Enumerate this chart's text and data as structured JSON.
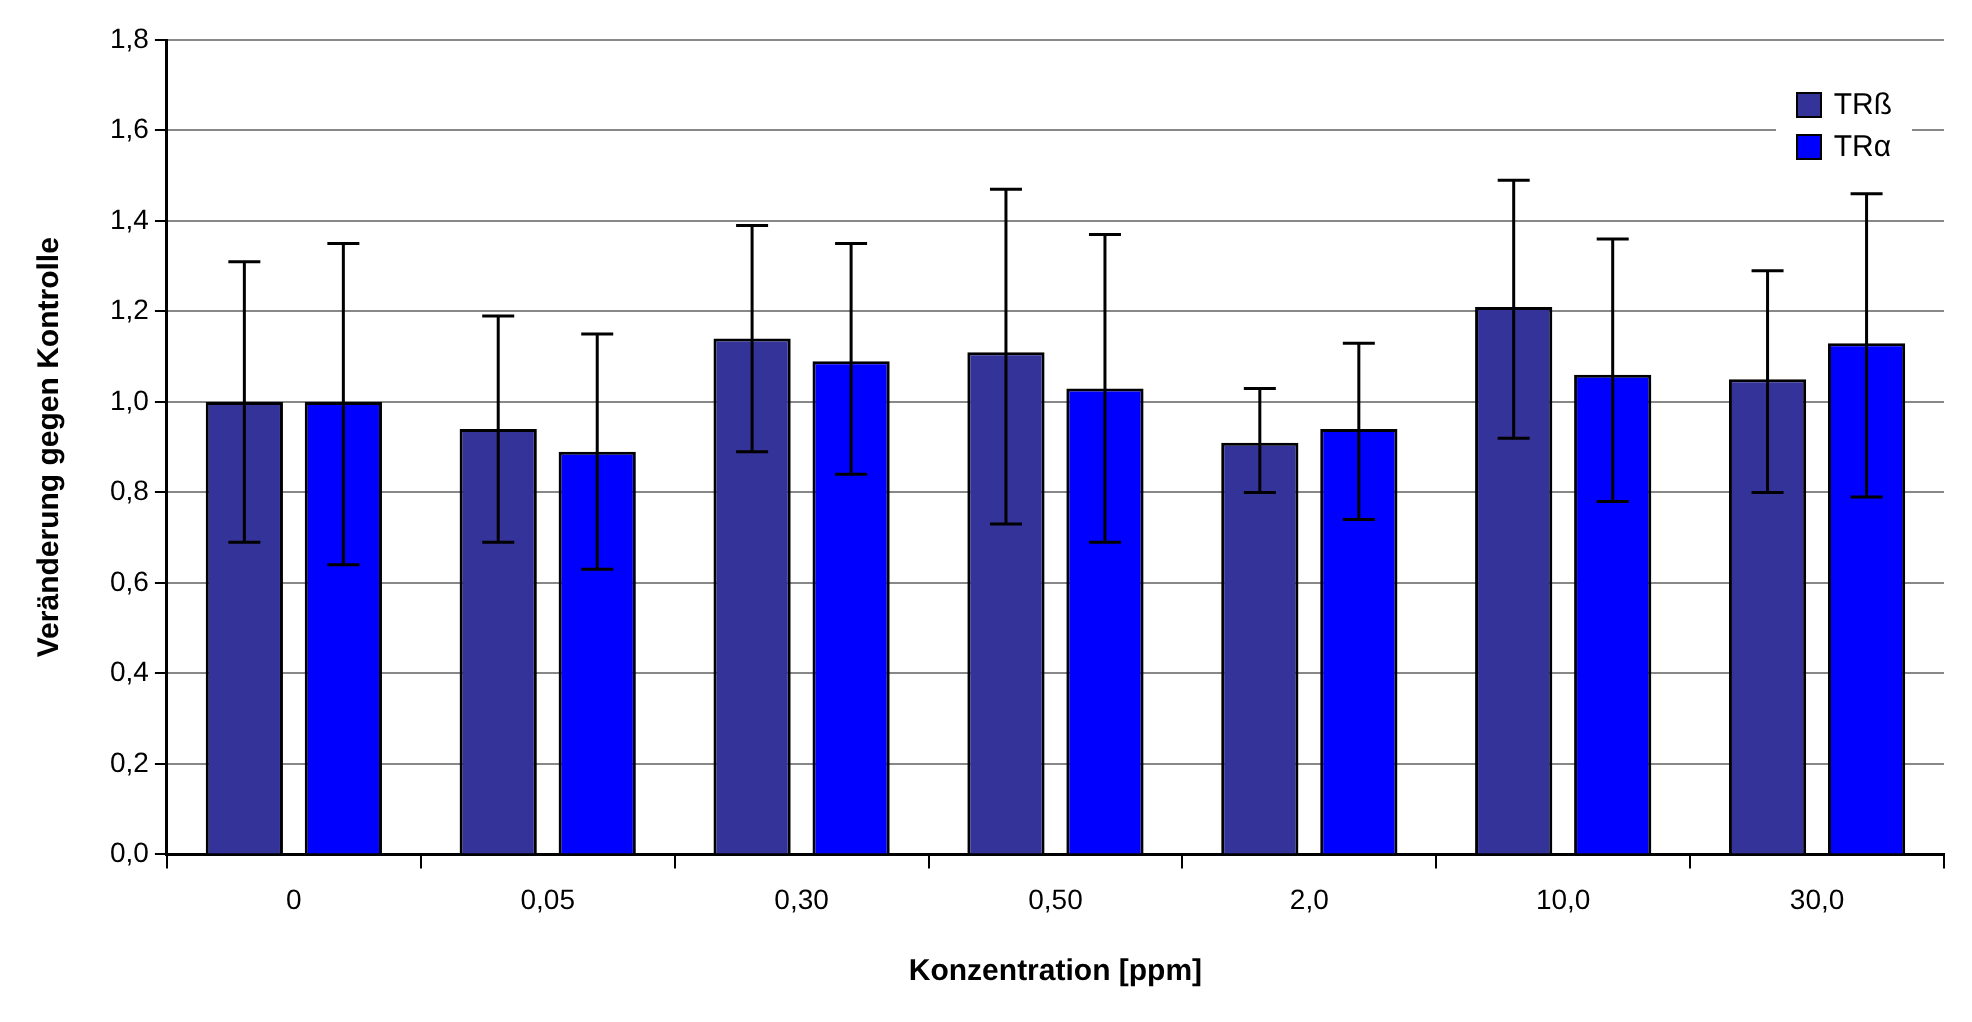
{
  "chart_data": {
    "type": "bar",
    "xlabel": "Konzentration [ppm]",
    "ylabel": "Veränderung gegen Kontrolle",
    "categories": [
      "0",
      "0,05",
      "0,30",
      "0,50",
      "2,0",
      "10,0",
      "30,0"
    ],
    "series": [
      {
        "name": "TRß",
        "color": "#333399",
        "values": [
          1.0,
          0.94,
          1.14,
          1.11,
          0.91,
          1.21,
          1.05
        ],
        "errors": [
          [
            0.69,
            1.31
          ],
          [
            0.69,
            1.19
          ],
          [
            0.89,
            1.39
          ],
          [
            0.73,
            1.47
          ],
          [
            0.8,
            1.03
          ],
          [
            0.92,
            1.49
          ],
          [
            0.8,
            1.29
          ]
        ]
      },
      {
        "name": "TRα",
        "color": "#0000ff",
        "values": [
          1.0,
          0.89,
          1.09,
          1.03,
          0.94,
          1.06,
          1.13
        ],
        "errors": [
          [
            0.64,
            1.35
          ],
          [
            0.63,
            1.15
          ],
          [
            0.84,
            1.35
          ],
          [
            0.69,
            1.37
          ],
          [
            0.74,
            1.13
          ],
          [
            0.78,
            1.36
          ],
          [
            0.79,
            1.46
          ]
        ]
      }
    ],
    "ylim": [
      0,
      1.8
    ],
    "yticks": [
      {
        "value": 0,
        "label": "0,0"
      },
      {
        "value": 0.2,
        "label": "0,2"
      },
      {
        "value": 0.4,
        "label": "0,4"
      },
      {
        "value": 0.6,
        "label": "0,6"
      },
      {
        "value": 0.8,
        "label": "0,8"
      },
      {
        "value": 1,
        "label": "1,0"
      },
      {
        "value": 1.2,
        "label": "1,2"
      },
      {
        "value": 1.4,
        "label": "1,4"
      },
      {
        "value": 1.6,
        "label": "1,6"
      },
      {
        "value": 1.8,
        "label": "1,8"
      }
    ],
    "grid": "y",
    "legend": "top right"
  }
}
